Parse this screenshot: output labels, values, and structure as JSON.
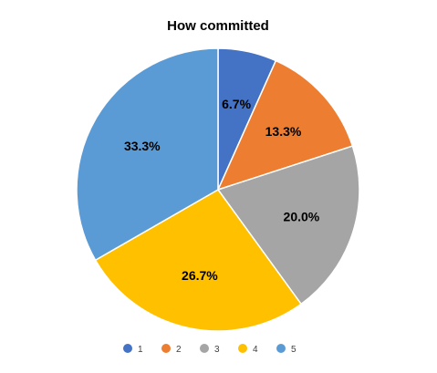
{
  "chart_data": {
    "type": "pie",
    "title": "How committed",
    "categories": [
      "1",
      "2",
      "3",
      "4",
      "5"
    ],
    "values": [
      6.7,
      13.3,
      20.0,
      26.7,
      33.3
    ],
    "data_labels": [
      "6.7%",
      "13.3%",
      "20.0%",
      "26.7%",
      "33.3%"
    ],
    "colors": [
      "#4472C4",
      "#ED7D31",
      "#A5A5A5",
      "#FFC000",
      "#5B9BD5"
    ],
    "legend_position": "bottom",
    "start_angle_deg": 0,
    "direction": "clockwise"
  }
}
